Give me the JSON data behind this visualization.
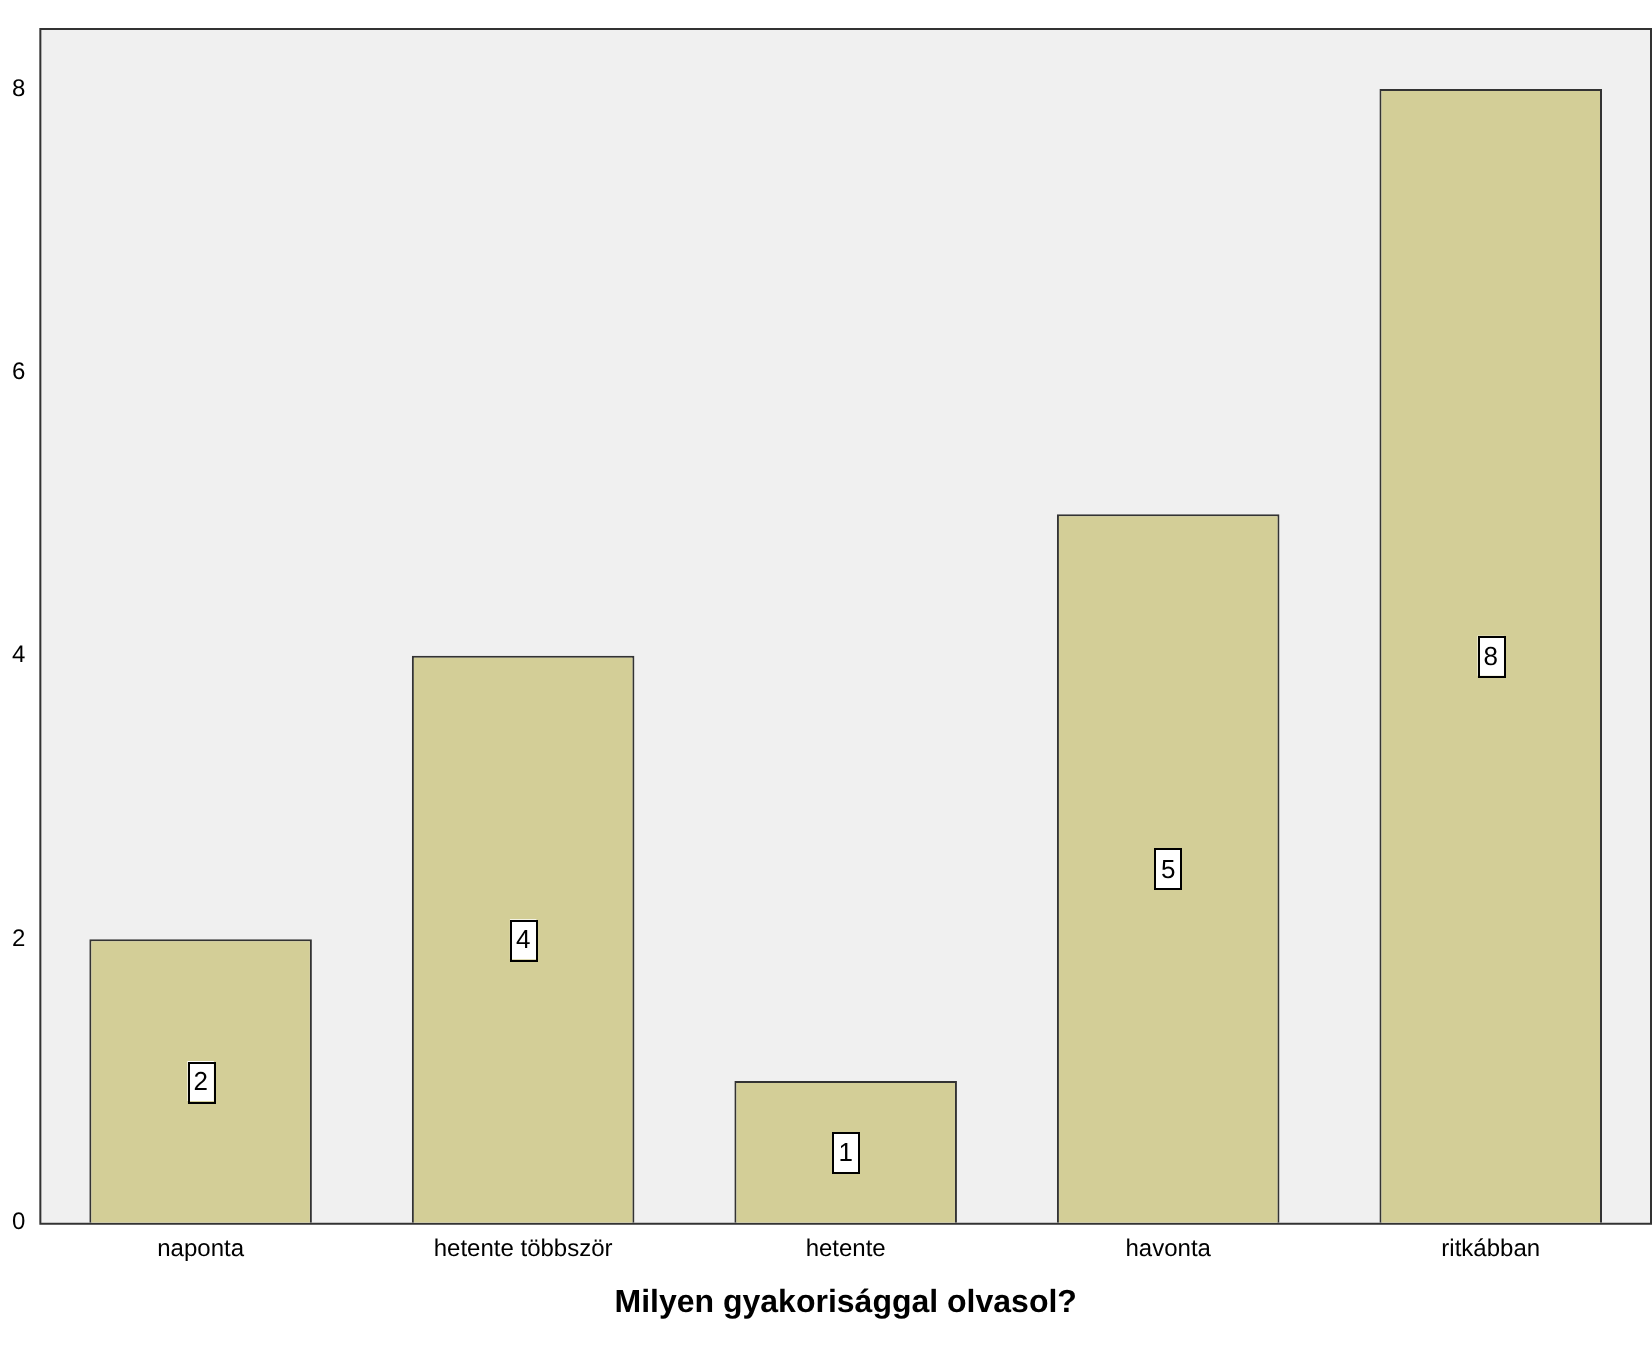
{
  "chart_data": {
    "type": "bar",
    "xlabel": "Milyen gyakorisággal olvasol?",
    "categories": [
      "naponta",
      "hetente többször",
      "hetente",
      "havonta",
      "ritkábban"
    ],
    "values": [
      2,
      4,
      1,
      5,
      8
    ],
    "color": "#d3ce97",
    "ylim": [
      0,
      8.43
    ],
    "yticks": [
      0,
      2,
      4,
      6,
      8
    ],
    "grid": false,
    "legend": false,
    "data_labels": true
  }
}
